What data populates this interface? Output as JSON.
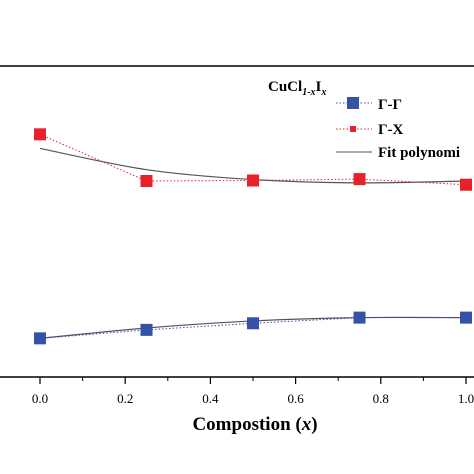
{
  "chart_data": {
    "type": "scatter",
    "xlabel_text": "Compostion (",
    "xlabel_var": "x",
    "xlabel_close": ")",
    "xlim": [
      -0.07,
      1.0
    ],
    "x_ticks": [
      0.0,
      0.2,
      0.4,
      0.6,
      0.8,
      1.0
    ],
    "x_tick_labels": [
      "0.0",
      "0.2",
      "0.4",
      "0.6",
      "0.8",
      "1.0"
    ],
    "legend_title": {
      "base": "CuCl",
      "sub1": "1-x",
      "mid": "I",
      "sub2": "x"
    },
    "legend_position": "top-right",
    "series": [
      {
        "name": "Γ-Γ",
        "color": "#3352a8",
        "marker": "square",
        "line_style": "dotted",
        "x": [
          0.0,
          0.25,
          0.5,
          0.75,
          1.0
        ],
        "y": [
          6.2,
          8.0,
          9.4,
          10.6,
          10.6
        ]
      },
      {
        "name": "Γ-X",
        "color": "#e8202a",
        "marker": "square",
        "line_style": "dotted",
        "x": [
          0.0,
          0.25,
          0.5,
          0.75,
          1.0
        ],
        "y": [
          49.5,
          39.6,
          39.7,
          40.0,
          38.8
        ]
      },
      {
        "name": "Fit polynomi",
        "color": "#555555",
        "marker": "none",
        "line_style": "solid",
        "fits": [
          {
            "x": [
              0.0,
              0.25,
              0.5,
              0.75,
              1.0
            ],
            "y": [
              46.5,
              42.0,
              39.9,
              39.2,
              39.6
            ]
          },
          {
            "x": [
              0.0,
              0.25,
              0.5,
              0.75,
              1.0
            ],
            "y": [
              6.2,
              8.4,
              9.9,
              10.6,
              10.6
            ]
          }
        ]
      }
    ],
    "ylim": [
      -2,
      64
    ]
  }
}
